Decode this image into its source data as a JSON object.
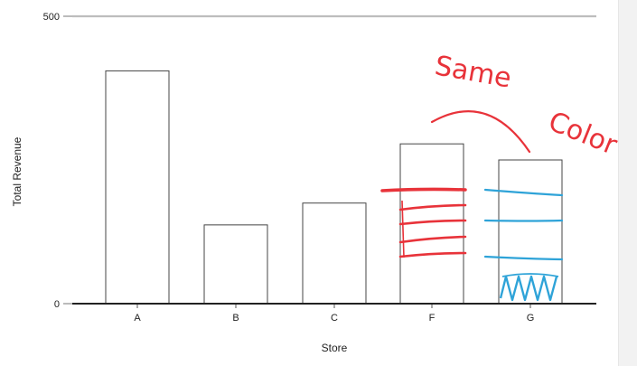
{
  "chart_data": {
    "type": "bar",
    "categories": [
      "A",
      "B",
      "C",
      "F",
      "G"
    ],
    "values": [
      405,
      137,
      175,
      278,
      250
    ],
    "xlabel": "Store",
    "ylabel": "Total Revenue",
    "ylim": [
      0,
      500
    ],
    "y_ticks": [
      "0",
      "500"
    ],
    "grid": true,
    "bar_fill": "#ffffff",
    "bar_stroke": "#444444"
  },
  "annotation": {
    "text_line1": "Same",
    "text_line2": "Color",
    "ink_red": "#e8333a",
    "ink_blue": "#2ea3d8",
    "red_bar": "F",
    "blue_bar": "G"
  }
}
